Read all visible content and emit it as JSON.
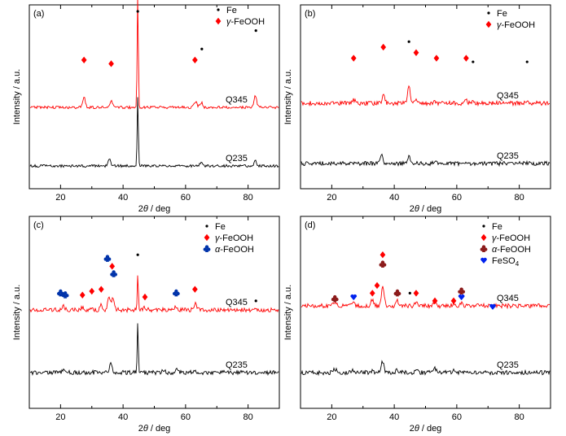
{
  "chart_data": [
    {
      "type": "line",
      "panel_label": "(a)",
      "xlabel": "2θ / deg",
      "xlabel_symbol": "2",
      "xlabel_italic": "θ",
      "xlabel_unit": " / deg",
      "ylabel": "Intensity / a.u.",
      "xlim": [
        10,
        90
      ],
      "xticks": [
        20,
        40,
        60,
        80
      ],
      "legend": [
        {
          "marker": "dot",
          "label": "Fe",
          "color": "#000000"
        },
        {
          "marker": "diamond",
          "label": "γ-FeOOH",
          "prefix": "γ",
          "rest": "-FeOOH",
          "color": "#ff0000"
        }
      ],
      "series": [
        {
          "name": "Q345",
          "color": "#ff0000",
          "base": 0.42,
          "peaks": [
            {
              "x": 27.5,
              "h": 0.08
            },
            {
              "x": 36.2,
              "h": 0.06
            },
            {
              "x": 44.7,
              "h": 0.93
            },
            {
              "x": 63.2,
              "h": 0.05
            },
            {
              "x": 65.0,
              "h": 0.04
            },
            {
              "x": 82.3,
              "h": 0.09
            }
          ],
          "markers": [
            {
              "type": "diamond",
              "x": 27.5,
              "y": 0.7
            },
            {
              "type": "diamond",
              "x": 36.2,
              "y": 0.68
            },
            {
              "type": "dot",
              "x": 44.7,
              "y": 3.0
            },
            {
              "type": "diamond",
              "x": 63.0,
              "y": 0.7
            },
            {
              "type": "dot",
              "x": 65.2,
              "y": 0.76
            },
            {
              "type": "dot",
              "x": 82.5,
              "y": 0.86
            }
          ]
        },
        {
          "name": "Q235",
          "color": "#000000",
          "base": 0.0,
          "peaks": [
            {
              "x": 35.6,
              "h": 0.06
            },
            {
              "x": 44.7,
              "h": 0.58
            },
            {
              "x": 65.0,
              "h": 0.03
            },
            {
              "x": 82.3,
              "h": 0.04
            }
          ],
          "markers": []
        }
      ]
    },
    {
      "type": "line",
      "panel_label": "(b)",
      "xlabel": "2θ / deg",
      "xlabel_symbol": "2",
      "xlabel_italic": "θ",
      "xlabel_unit": " / deg",
      "ylabel": "Intensity / a.u.",
      "xlim": [
        10,
        90
      ],
      "xticks": [
        20,
        40,
        60,
        80
      ],
      "legend": [
        {
          "marker": "dot",
          "label": "Fe",
          "color": "#000000"
        },
        {
          "marker": "diamond",
          "label": "γ-FeOOH",
          "prefix": "γ",
          "rest": "-FeOOH",
          "color": "#ff0000"
        }
      ],
      "series": [
        {
          "name": "Q345",
          "color": "#ff0000",
          "base": 0.55,
          "peaks": [
            {
              "x": 27.0,
              "h": 0.03
            },
            {
              "x": 36.5,
              "h": 0.06
            },
            {
              "x": 44.7,
              "h": 0.13
            },
            {
              "x": 47.0,
              "h": 0.03
            },
            {
              "x": 53.0,
              "h": 0.02
            },
            {
              "x": 63.0,
              "h": 0.02
            },
            {
              "x": 65.0,
              "h": 0.01
            },
            {
              "x": 82.3,
              "h": 0.01
            }
          ],
          "markers": [
            {
              "type": "diamond",
              "x": 27.0,
              "y": 0.71
            },
            {
              "type": "diamond",
              "x": 36.5,
              "y": 0.77
            },
            {
              "type": "dot",
              "x": 44.7,
              "y": 0.8
            },
            {
              "type": "diamond",
              "x": 47.0,
              "y": 0.74
            },
            {
              "type": "diamond",
              "x": 53.5,
              "y": 0.71
            },
            {
              "type": "diamond",
              "x": 63.0,
              "y": 0.71
            },
            {
              "type": "dot",
              "x": 65.2,
              "y": 0.69
            },
            {
              "type": "dot",
              "x": 82.5,
              "y": 0.69
            }
          ]
        },
        {
          "name": "Q235",
          "color": "#000000",
          "base": 0.0,
          "peaks": [
            {
              "x": 36.0,
              "h": 0.07
            },
            {
              "x": 44.7,
              "h": 0.07
            },
            {
              "x": 53.0,
              "h": 0.02
            }
          ],
          "markers": []
        }
      ]
    },
    {
      "type": "line",
      "panel_label": "(c)",
      "xlabel": "2θ / deg",
      "xlabel_symbol": "2",
      "xlabel_italic": "θ",
      "xlabel_unit": " / deg",
      "ylabel": "Intensity / a.u.",
      "xlim": [
        10,
        90
      ],
      "xticks": [
        20,
        40,
        60,
        80
      ],
      "legend": [
        {
          "marker": "dot",
          "label": "Fe",
          "color": "#000000"
        },
        {
          "marker": "diamond",
          "label": "γ-FeOOH",
          "prefix": "γ",
          "rest": "-FeOOH",
          "color": "#ff0000"
        },
        {
          "marker": "club",
          "label": "α-FeOOH",
          "prefix": "α",
          "rest": "-FeOOH",
          "color": "#0033aa"
        }
      ],
      "series": [
        {
          "name": "Q345",
          "color": "#ff0000",
          "base": 0.45,
          "peaks": [
            {
              "x": 21.0,
              "h": 0.03
            },
            {
              "x": 27.0,
              "h": 0.02
            },
            {
              "x": 30.0,
              "h": 0.02
            },
            {
              "x": 33.0,
              "h": 0.04
            },
            {
              "x": 35.5,
              "h": 0.12
            },
            {
              "x": 36.8,
              "h": 0.1
            },
            {
              "x": 44.7,
              "h": 0.28
            },
            {
              "x": 47.0,
              "h": 0.02
            },
            {
              "x": 57.0,
              "h": 0.03
            },
            {
              "x": 63.0,
              "h": 0.05
            }
          ],
          "markers": [
            {
              "type": "club",
              "x": 20.0,
              "y": 0.6
            },
            {
              "type": "club",
              "x": 21.5,
              "y": 0.59
            },
            {
              "type": "diamond",
              "x": 27.0,
              "y": 0.59
            },
            {
              "type": "diamond",
              "x": 30.0,
              "y": 0.61
            },
            {
              "type": "diamond",
              "x": 33.0,
              "y": 0.62
            },
            {
              "type": "club",
              "x": 35.0,
              "y": 0.78
            },
            {
              "type": "diamond",
              "x": 36.5,
              "y": 0.74
            },
            {
              "type": "club",
              "x": 37.0,
              "y": 0.7
            },
            {
              "type": "dot",
              "x": 44.7,
              "y": 0.8
            },
            {
              "type": "diamond",
              "x": 47.0,
              "y": 0.58
            },
            {
              "type": "club",
              "x": 57.0,
              "y": 0.6
            },
            {
              "type": "diamond",
              "x": 63.0,
              "y": 0.62
            },
            {
              "type": "dot",
              "x": 82.5,
              "y": 0.56
            }
          ]
        },
        {
          "name": "Q235",
          "color": "#000000",
          "base": 0.0,
          "peaks": [
            {
              "x": 21.0,
              "h": 0.02
            },
            {
              "x": 36.0,
              "h": 0.07
            },
            {
              "x": 44.7,
              "h": 0.42
            },
            {
              "x": 53.0,
              "h": 0.02
            },
            {
              "x": 57.0,
              "h": 0.02
            },
            {
              "x": 63.0,
              "h": 0.02
            }
          ],
          "markers": []
        }
      ]
    },
    {
      "type": "line",
      "panel_label": "(d)",
      "xlabel": "2θ / deg",
      "xlabel_symbol": "2",
      "xlabel_italic": "θ",
      "xlabel_unit": " / deg",
      "ylabel": "Intensity / a.u.",
      "xlim": [
        10,
        90
      ],
      "xticks": [
        20,
        40,
        60,
        80
      ],
      "legend": [
        {
          "marker": "dot",
          "label": "Fe",
          "color": "#000000"
        },
        {
          "marker": "diamond",
          "label": "γ-FeOOH",
          "prefix": "γ",
          "rest": "-FeOOH",
          "color": "#ff0000"
        },
        {
          "marker": "club",
          "label": "α-FeOOH",
          "prefix": "α",
          "rest": "-FeOOH",
          "color": "#8b1a1a"
        },
        {
          "marker": "heart",
          "label": "FeSO4",
          "prefix": "FeSO",
          "sub": "4",
          "color": "#0022ee"
        }
      ],
      "series": [
        {
          "name": "Q345",
          "color": "#ff0000",
          "base": 0.45,
          "peaks": [
            {
              "x": 21.0,
              "h": 0.03
            },
            {
              "x": 27.0,
              "h": 0.03
            },
            {
              "x": 33.0,
              "h": 0.05
            },
            {
              "x": 36.3,
              "h": 0.16
            },
            {
              "x": 41.0,
              "h": 0.04
            },
            {
              "x": 47.0,
              "h": 0.02
            },
            {
              "x": 53.0,
              "h": 0.03
            },
            {
              "x": 59.0,
              "h": 0.02
            },
            {
              "x": 61.5,
              "h": 0.03
            }
          ],
          "markers": [
            {
              "type": "club",
              "x": 21.0,
              "y": 0.57
            },
            {
              "type": "heart",
              "x": 27.0,
              "y": 0.58
            },
            {
              "type": "diamond",
              "x": 33.0,
              "y": 0.6
            },
            {
              "type": "diamond",
              "x": 34.5,
              "y": 0.64
            },
            {
              "type": "club",
              "x": 36.3,
              "y": 0.75
            },
            {
              "type": "diamond",
              "x": 36.3,
              "y": 0.8
            },
            {
              "type": "club",
              "x": 41.0,
              "y": 0.6
            },
            {
              "type": "dot",
              "x": 45.0,
              "y": 0.6
            },
            {
              "type": "diamond",
              "x": 47.0,
              "y": 0.6
            },
            {
              "type": "diamond",
              "x": 53.0,
              "y": 0.56
            },
            {
              "type": "diamond",
              "x": 59.0,
              "y": 0.56
            },
            {
              "type": "club",
              "x": 61.5,
              "y": 0.61
            },
            {
              "type": "heart",
              "x": 61.5,
              "y": 0.58
            },
            {
              "type": "heart",
              "x": 71.5,
              "y": 0.53
            }
          ]
        },
        {
          "name": "Q235",
          "color": "#000000",
          "base": 0.0,
          "peaks": [
            {
              "x": 21.0,
              "h": 0.03
            },
            {
              "x": 27.0,
              "h": 0.02
            },
            {
              "x": 33.0,
              "h": 0.02
            },
            {
              "x": 36.3,
              "h": 0.09
            },
            {
              "x": 41.0,
              "h": 0.02
            },
            {
              "x": 47.0,
              "h": 0.02
            },
            {
              "x": 53.0,
              "h": 0.03
            },
            {
              "x": 59.0,
              "h": 0.02
            }
          ],
          "markers": []
        }
      ]
    }
  ]
}
